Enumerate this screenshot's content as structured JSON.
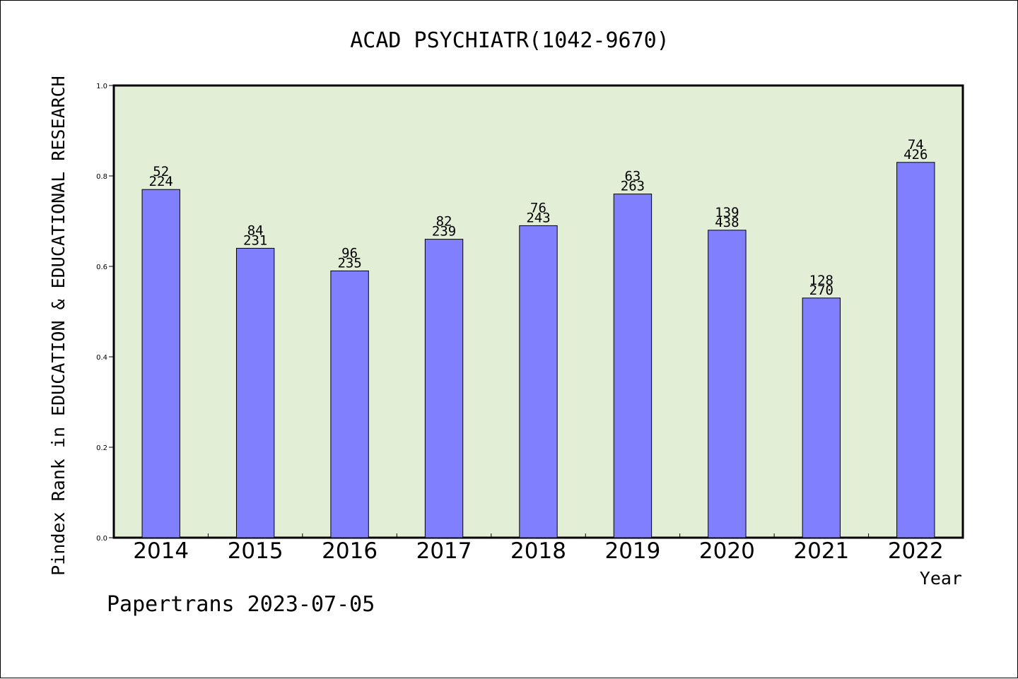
{
  "chart_data": {
    "type": "bar",
    "title": "ACAD PSYCHIATR(1042-9670)",
    "xlabel": "Year",
    "ylabel": "Pindex Rank in EDUCATION & EDUCATIONAL RESEARCH",
    "categories": [
      "2014",
      "2015",
      "2016",
      "2017",
      "2018",
      "2019",
      "2020",
      "2021",
      "2022"
    ],
    "values": [
      0.77,
      0.64,
      0.59,
      0.66,
      0.69,
      0.76,
      0.68,
      0.53,
      0.83
    ],
    "rank_labels": [
      "52",
      "84",
      "96",
      "82",
      "76",
      "63",
      "139",
      "128",
      "74"
    ],
    "total_labels": [
      "224",
      "231",
      "235",
      "239",
      "243",
      "263",
      "438",
      "270",
      "426"
    ],
    "ylim": [
      0,
      1.0
    ],
    "yticks": [
      "0.0",
      "0.2",
      "0.4",
      "0.6",
      "0.8",
      "1.0"
    ],
    "grid": false,
    "colors": {
      "plot_background": "#e2efd6",
      "bar_fill": "#8080ff",
      "bar_stroke": "#000000"
    }
  },
  "footer": {
    "watermark": "Papertrans 2023-07-05"
  }
}
